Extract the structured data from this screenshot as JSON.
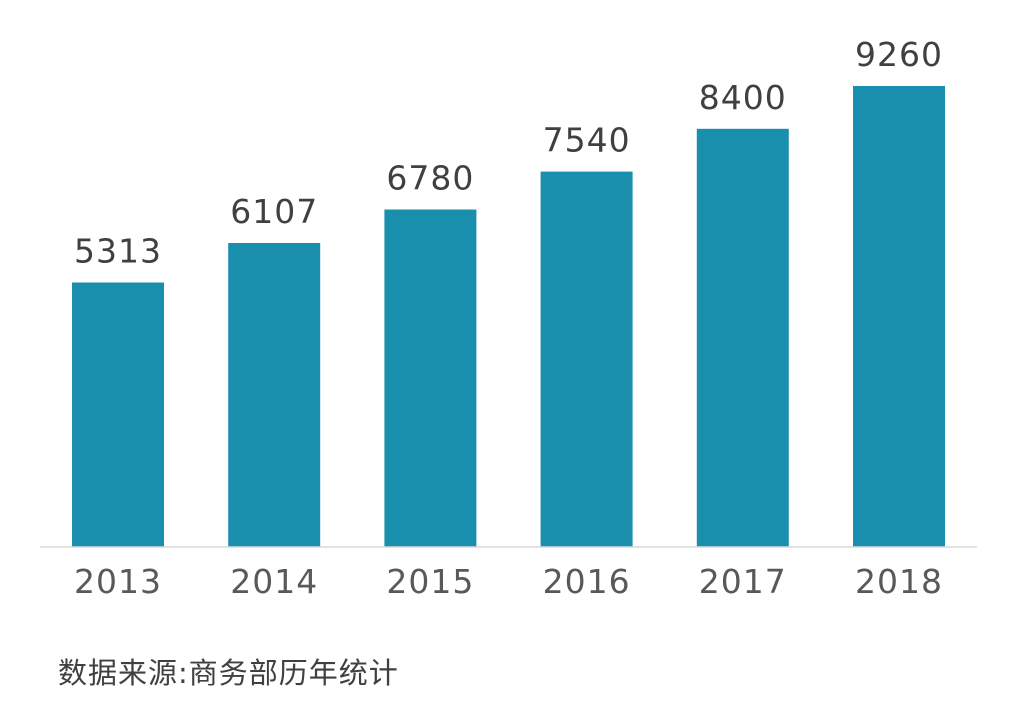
{
  "chart_data": {
    "type": "bar",
    "categories": [
      "2013",
      "2014",
      "2015",
      "2016",
      "2017",
      "2018"
    ],
    "values": [
      5313,
      6107,
      6780,
      7540,
      8400,
      9260
    ],
    "title": "",
    "xlabel": "",
    "ylabel": "",
    "ylim": [
      0,
      9260
    ],
    "grid": false,
    "legend": "none",
    "bar_color": "#1a8fad",
    "data_labels": true
  },
  "source_note": "数据来源:商务部历年统计"
}
